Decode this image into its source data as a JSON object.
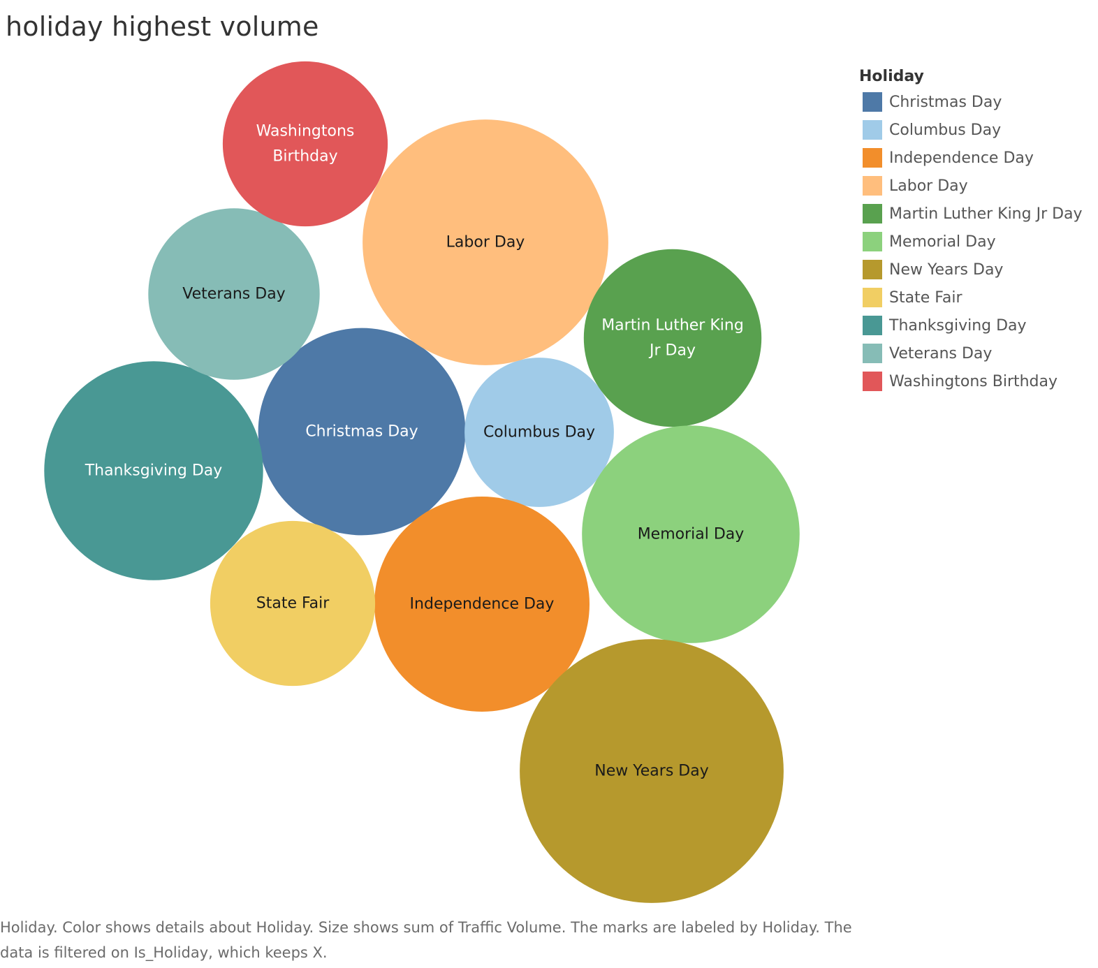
{
  "chart_data": {
    "type": "packed_bubble",
    "title": "holiday highest volume",
    "legend_title": "Holiday",
    "legend_position": "right",
    "size_measure": "Traffic Volume",
    "color_dimension": "Holiday",
    "series": [
      {
        "name": "Christmas Day",
        "label_lines": [
          "Christmas Day"
        ],
        "value": 0.79,
        "color": "#4e79a7",
        "label_color": "#ffffff"
      },
      {
        "name": "Columbus Day",
        "label_lines": [
          "Columbus Day"
        ],
        "value": 0.41,
        "color": "#a0cbe8",
        "label_color": "#1a1a1a"
      },
      {
        "name": "Independence Day",
        "label_lines": [
          "Independence Day"
        ],
        "value": 0.85,
        "color": "#f28e2b",
        "label_color": "#1a1a1a"
      },
      {
        "name": "Labor Day",
        "label_lines": [
          "Labor Day"
        ],
        "value": 1.11,
        "color": "#ffbe7d",
        "label_color": "#1a1a1a"
      },
      {
        "name": "Martin Luther King Jr Day",
        "label_lines": [
          "Martin Luther King",
          "Jr Day"
        ],
        "value": 0.58,
        "color": "#59a14f",
        "label_color": "#ffffff"
      },
      {
        "name": "Memorial Day",
        "label_lines": [
          "Memorial Day"
        ],
        "value": 0.87,
        "color": "#8cd17d",
        "label_color": "#1a1a1a"
      },
      {
        "name": "New Years Day",
        "label_lines": [
          "New Years Day"
        ],
        "value": 1.28,
        "color": "#b6992d",
        "label_color": "#1a1a1a"
      },
      {
        "name": "State Fair",
        "label_lines": [
          "State Fair"
        ],
        "value": 0.5,
        "color": "#f1ce63",
        "label_color": "#1a1a1a"
      },
      {
        "name": "Thanksgiving Day",
        "label_lines": [
          "Thanksgiving Day"
        ],
        "value": 0.88,
        "color": "#499894",
        "label_color": "#ffffff"
      },
      {
        "name": "Veterans Day",
        "label_lines": [
          "Veterans Day"
        ],
        "value": 0.54,
        "color": "#86bcb6",
        "label_color": "#1a1a1a"
      },
      {
        "name": "Washingtons Birthday",
        "label_lines": [
          "Washingtons",
          "Birthday"
        ],
        "value": 0.5,
        "color": "#e15759",
        "label_color": "#ffffff"
      }
    ]
  },
  "caption": "Holiday.  Color shows details about Holiday.  Size shows sum of Traffic Volume.  The marks are labeled by Holiday. The data is filtered on Is_Holiday, which keeps X."
}
